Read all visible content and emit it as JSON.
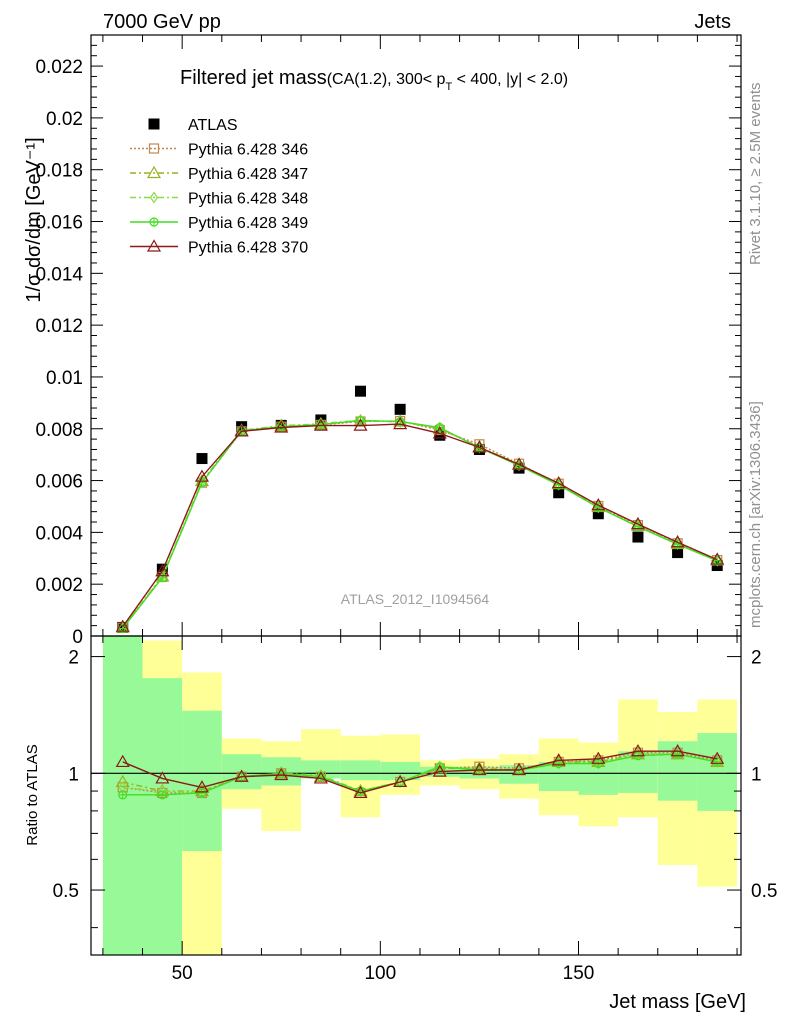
{
  "header": {
    "left": "7000 GeV pp",
    "right": "Jets"
  },
  "side_labels": {
    "rivet": "Rivet 3.1.10, ≥ 2.5M events",
    "mcplots": "mcplots.cern.ch [arXiv:1306.3436]"
  },
  "chart_data": [
    {
      "type": "scatter",
      "panel": "main",
      "title_main": "Filtered jet mass",
      "title_cuts_pre": "(CA(1.2), 300< p",
      "title_cuts_sub": "T",
      "title_cuts_post": " < 400, |y| < 2.0)",
      "ylabel": "1/σ dσ/dm [GeV⁻¹]",
      "watermark": "ATLAS_2012_I1094564",
      "xlim": [
        27,
        191
      ],
      "ylim": [
        0,
        0.0232
      ],
      "yticks": [
        0,
        0.002,
        0.004,
        0.006,
        0.008,
        0.01,
        0.012,
        0.014,
        0.016,
        0.018,
        0.02,
        0.022
      ],
      "ytick_labels": [
        "0",
        "0.002",
        "0.004",
        "0.006",
        "0.008",
        "0.01",
        "0.012",
        "0.014",
        "0.016",
        "0.018",
        "0.02",
        "0.022"
      ],
      "x": [
        35,
        45,
        55,
        65,
        75,
        85,
        95,
        105,
        115,
        125,
        135,
        145,
        155,
        165,
        175,
        185
      ],
      "series": [
        {
          "name": "ATLAS",
          "color": "#000000",
          "marker": "filled-square",
          "line": "none",
          "values": [
            0.00033,
            0.00258,
            0.00685,
            0.00808,
            0.00813,
            0.00834,
            0.00945,
            0.00875,
            0.00775,
            0.0072,
            0.00648,
            0.00553,
            0.00472,
            0.00382,
            0.00322,
            0.00272
          ]
        },
        {
          "name": "Pythia 6.428 346",
          "color": "#c08850",
          "marker": "open-square",
          "line": "dotted",
          "values": [
            0.00032,
            0.00228,
            0.00592,
            0.0079,
            0.00808,
            0.00815,
            0.00828,
            0.0083,
            0.00795,
            0.0074,
            0.00665,
            0.00588,
            0.00502,
            0.00428,
            0.00358,
            0.00293
          ]
        },
        {
          "name": "Pythia 6.428 347",
          "color": "#9ab020",
          "marker": "open-triangle",
          "line": "dashdot",
          "values": [
            0.00033,
            0.0023,
            0.00598,
            0.00793,
            0.00812,
            0.00818,
            0.0083,
            0.00828,
            0.008,
            0.0073,
            0.00662,
            0.00586,
            0.00498,
            0.00425,
            0.00355,
            0.00292
          ]
        },
        {
          "name": "Pythia 6.428 348",
          "color": "#88dd44",
          "marker": "open-diamond",
          "line": "dashdot",
          "values": [
            0.00032,
            0.00232,
            0.00596,
            0.00795,
            0.0081,
            0.0082,
            0.00833,
            0.00826,
            0.00803,
            0.00728,
            0.0066,
            0.00585,
            0.00497,
            0.00424,
            0.00356,
            0.00291
          ]
        },
        {
          "name": "Pythia 6.428 349",
          "color": "#44dd22",
          "marker": "open-circle-cross",
          "line": "solid",
          "values": [
            0.00029,
            0.00225,
            0.00592,
            0.00792,
            0.00808,
            0.00816,
            0.00832,
            0.00828,
            0.00805,
            0.00727,
            0.00658,
            0.00583,
            0.00496,
            0.00422,
            0.00354,
            0.0029
          ]
        },
        {
          "name": "Pythia 6.428 370",
          "color": "#8b1a1a",
          "marker": "open-triangle",
          "line": "solid",
          "values": [
            0.00036,
            0.0025,
            0.00615,
            0.0079,
            0.00805,
            0.00812,
            0.00812,
            0.00818,
            0.00782,
            0.00728,
            0.00662,
            0.0059,
            0.00505,
            0.00432,
            0.00362,
            0.00295
          ]
        }
      ]
    },
    {
      "type": "line",
      "panel": "ratio",
      "xlabel": "Jet mass [GeV]",
      "ylabel": "Ratio to ATLAS",
      "xlim": [
        27,
        191
      ],
      "ylim": [
        0.34,
        2.26
      ],
      "xticks": [
        50,
        100,
        150
      ],
      "xtick_labels": [
        "50",
        "100",
        "150"
      ],
      "yticks": [
        0.5,
        1,
        2
      ],
      "ytick_labels": [
        "0.5",
        "1",
        "2"
      ],
      "bin_edges": [
        30,
        40,
        50,
        60,
        70,
        80,
        90,
        100,
        110,
        120,
        130,
        140,
        150,
        160,
        170,
        180,
        190
      ],
      "band_colors": {
        "stat": "#98f998",
        "total": "#ffff98"
      },
      "band_green": [
        [
          0.34,
          2.26
        ],
        [
          0.34,
          1.76
        ],
        [
          0.63,
          1.45
        ],
        [
          0.91,
          1.12
        ],
        [
          0.93,
          1.1
        ],
        [
          0.97,
          1.08
        ],
        [
          0.96,
          1.08
        ],
        [
          0.96,
          1.07
        ],
        [
          0.98,
          1.04
        ],
        [
          0.97,
          1.04
        ],
        [
          0.94,
          1.05
        ],
        [
          0.9,
          1.07
        ],
        [
          0.88,
          1.09
        ],
        [
          0.89,
          1.14
        ],
        [
          0.85,
          1.21
        ],
        [
          0.8,
          1.27
        ]
      ],
      "band_yellow": [
        [
          0.34,
          2.26
        ],
        [
          0.34,
          2.2
        ],
        [
          0.34,
          1.82
        ],
        [
          0.81,
          1.23
        ],
        [
          0.71,
          1.21
        ],
        [
          1.0,
          1.3
        ],
        [
          0.77,
          1.25
        ],
        [
          0.88,
          1.26
        ],
        [
          0.93,
          1.08
        ],
        [
          0.91,
          1.09
        ],
        [
          0.86,
          1.12
        ],
        [
          0.78,
          1.23
        ],
        [
          0.73,
          1.2
        ],
        [
          0.77,
          1.55
        ],
        [
          0.58,
          1.44
        ],
        [
          0.51,
          1.55
        ]
      ],
      "series": [
        {
          "name": "Pythia 6.428 346",
          "color": "#c08850",
          "values": [
            0.92,
            0.89,
            0.89,
            0.98,
            1.0,
            0.98,
            0.89,
            0.95,
            1.03,
            1.04,
            1.03,
            1.07,
            1.08,
            1.13,
            1.13,
            1.08
          ]
        },
        {
          "name": "Pythia 6.428 347",
          "color": "#9ab020",
          "values": [
            0.95,
            0.9,
            0.9,
            0.98,
            1.0,
            0.98,
            0.9,
            0.95,
            1.03,
            1.03,
            1.02,
            1.07,
            1.07,
            1.12,
            1.12,
            1.07
          ]
        },
        {
          "name": "Pythia 6.428 348",
          "color": "#88dd44",
          "values": [
            0.92,
            0.9,
            0.89,
            0.98,
            1.0,
            0.99,
            0.9,
            0.95,
            1.04,
            1.02,
            1.02,
            1.06,
            1.06,
            1.12,
            1.12,
            1.07
          ]
        },
        {
          "name": "Pythia 6.428 349",
          "color": "#44dd22",
          "values": [
            0.88,
            0.88,
            0.89,
            0.98,
            1.0,
            0.98,
            0.9,
            0.95,
            1.04,
            1.02,
            1.02,
            1.06,
            1.06,
            1.11,
            1.12,
            1.07
          ]
        },
        {
          "name": "Pythia 6.428 370",
          "color": "#8b1a1a",
          "values": [
            1.07,
            0.97,
            0.92,
            0.98,
            0.99,
            0.97,
            0.89,
            0.95,
            1.01,
            1.02,
            1.02,
            1.08,
            1.09,
            1.14,
            1.14,
            1.09
          ]
        }
      ]
    }
  ]
}
